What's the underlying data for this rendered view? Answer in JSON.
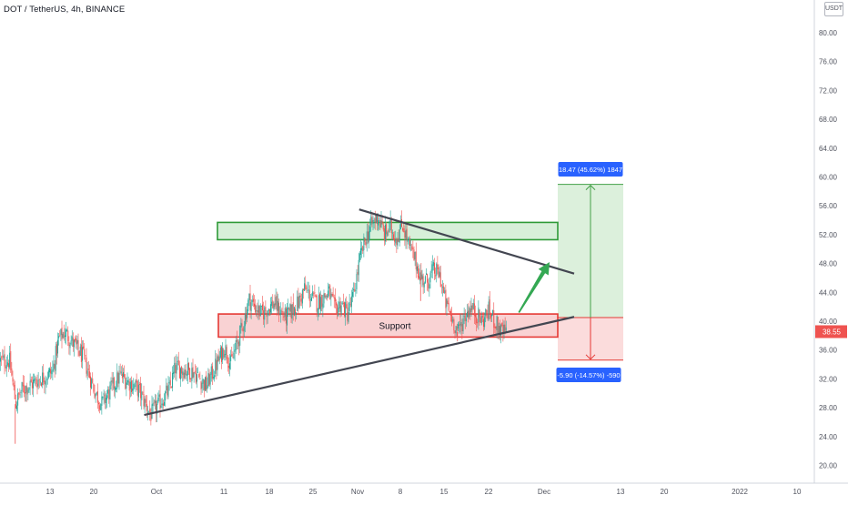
{
  "header": {
    "title": "DOT / TetherUS, 4h, BINANCE",
    "currency": "USDT"
  },
  "colors": {
    "up": "#26a69a",
    "down": "#ef5350",
    "resistance_fill": "#d7efd9",
    "resistance_stroke": "#2e9a37",
    "support_fill": "#f9d2d3",
    "support_stroke": "#e53935",
    "trendline": "#434651",
    "arrow": "#34a853",
    "target_fill": "#dcf0dc",
    "stop_fill": "#fbdcdc",
    "label_blue": "#2962ff",
    "price_badge": "#ef5350"
  },
  "chart_data": {
    "type": "candlestick",
    "symbol": "DOT / TetherUS",
    "interval": "4h",
    "exchange": "BINANCE",
    "y_axis": {
      "ticks": [
        20.0,
        24.0,
        28.0,
        32.0,
        36.0,
        40.0,
        44.0,
        48.0,
        52.0,
        56.0,
        60.0,
        64.0,
        68.0,
        72.0,
        76.0,
        80.0
      ],
      "tick_labels": [
        "20.00",
        "24.00",
        "28.00",
        "32.00",
        "36.00",
        "40.00",
        "44.00",
        "48.00",
        "52.00",
        "56.00",
        "60.00",
        "64.00",
        "68.00",
        "72.00",
        "76.00",
        "80.00"
      ],
      "current_price": "38.55"
    },
    "x_axis": {
      "tick_labels": [
        "13",
        "20",
        "Oct",
        "11",
        "18",
        "25",
        "Nov",
        "8",
        "15",
        "22",
        "Dec",
        "13",
        "20",
        "2022",
        "10"
      ]
    },
    "price_path": [
      {
        "date": "2021-09-06",
        "price": 34.5
      },
      {
        "date": "2021-09-07",
        "price": 28.5
      },
      {
        "date": "2021-09-08",
        "price": 30.5
      },
      {
        "date": "2021-09-10",
        "price": 31.5
      },
      {
        "date": "2021-09-13",
        "price": 33.0
      },
      {
        "date": "2021-09-14",
        "price": 37.5
      },
      {
        "date": "2021-09-15",
        "price": 38.5
      },
      {
        "date": "2021-09-18",
        "price": 35.0
      },
      {
        "date": "2021-09-20",
        "price": 30.0
      },
      {
        "date": "2021-09-21",
        "price": 28.5
      },
      {
        "date": "2021-09-24",
        "price": 32.5
      },
      {
        "date": "2021-09-27",
        "price": 30.5
      },
      {
        "date": "2021-09-29",
        "price": 27.0
      },
      {
        "date": "2021-10-02",
        "price": 30.5
      },
      {
        "date": "2021-10-03",
        "price": 33.5
      },
      {
        "date": "2021-10-06",
        "price": 33.0
      },
      {
        "date": "2021-10-08",
        "price": 31.0
      },
      {
        "date": "2021-10-10",
        "price": 34.5
      },
      {
        "date": "2021-10-11",
        "price": 36.5
      },
      {
        "date": "2021-10-12",
        "price": 34.0
      },
      {
        "date": "2021-10-14",
        "price": 39.5
      },
      {
        "date": "2021-10-15",
        "price": 43.0
      },
      {
        "date": "2021-10-17",
        "price": 41.0
      },
      {
        "date": "2021-10-19",
        "price": 42.5
      },
      {
        "date": "2021-10-21",
        "price": 40.5
      },
      {
        "date": "2021-10-23",
        "price": 42.5
      },
      {
        "date": "2021-10-24",
        "price": 44.5
      },
      {
        "date": "2021-10-26",
        "price": 42.5
      },
      {
        "date": "2021-10-28",
        "price": 44.0
      },
      {
        "date": "2021-10-29",
        "price": 41.5
      },
      {
        "date": "2021-10-30",
        "price": 42.5
      },
      {
        "date": "2021-10-31",
        "price": 41.0
      },
      {
        "date": "2021-11-01",
        "price": 43.5
      },
      {
        "date": "2021-11-02",
        "price": 48.5
      },
      {
        "date": "2021-11-03",
        "price": 51.5
      },
      {
        "date": "2021-11-04",
        "price": 53.5
      },
      {
        "date": "2021-11-05",
        "price": 54.5
      },
      {
        "date": "2021-11-06",
        "price": 52.0
      },
      {
        "date": "2021-11-07",
        "price": 53.0
      },
      {
        "date": "2021-11-08",
        "price": 51.5
      },
      {
        "date": "2021-11-09",
        "price": 53.5
      },
      {
        "date": "2021-11-10",
        "price": 50.5
      },
      {
        "date": "2021-11-11",
        "price": 48.5
      },
      {
        "date": "2021-11-12",
        "price": 46.0
      },
      {
        "date": "2021-11-13",
        "price": 45.5
      },
      {
        "date": "2021-11-14",
        "price": 47.0
      },
      {
        "date": "2021-11-15",
        "price": 46.5
      },
      {
        "date": "2021-11-16",
        "price": 42.5
      },
      {
        "date": "2021-11-17",
        "price": 40.5
      },
      {
        "date": "2021-11-18",
        "price": 38.5
      },
      {
        "date": "2021-11-19",
        "price": 40.5
      },
      {
        "date": "2021-11-20",
        "price": 42.0
      },
      {
        "date": "2021-11-21",
        "price": 41.0
      },
      {
        "date": "2021-11-22",
        "price": 40.0
      },
      {
        "date": "2021-11-23",
        "price": 41.5
      },
      {
        "date": "2021-11-24",
        "price": 40.0
      },
      {
        "date": "2021-11-25",
        "price": 38.5
      },
      {
        "date": "2021-11-26",
        "price": 38.55
      }
    ],
    "annotations": {
      "resistance_zone": {
        "from": 51.3,
        "to": 53.7
      },
      "support_zone": {
        "from": 37.8,
        "to": 41.0,
        "label": "Support"
      },
      "rising_trendline": [
        {
          "date": "2021-09-28",
          "price": 27.0
        },
        {
          "date": "2021-12-07",
          "price": 40.6
        }
      ],
      "falling_trendline": [
        {
          "date": "2021-11-02",
          "price": 55.5
        },
        {
          "date": "2021-12-07",
          "price": 46.6
        }
      ],
      "arrow": [
        {
          "date": "2021-11-28",
          "price": 41.2
        },
        {
          "date": "2021-12-03",
          "price": 48.2
        }
      ],
      "long_position": {
        "entry": 40.5,
        "target": 58.97,
        "stop": 34.6,
        "target_label": "18.47 (45.62%) 1847",
        "stop_label": "-5.90 (-14.57%) -590"
      }
    }
  }
}
